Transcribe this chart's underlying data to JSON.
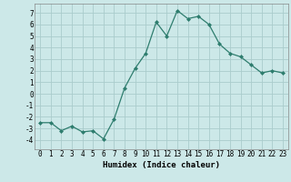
{
  "xlabel": "Humidex (Indice chaleur)",
  "x": [
    0,
    1,
    2,
    3,
    4,
    5,
    6,
    7,
    8,
    9,
    10,
    11,
    12,
    13,
    14,
    15,
    16,
    17,
    18,
    19,
    20,
    21,
    22,
    23
  ],
  "y": [
    -2.5,
    -2.5,
    -3.2,
    -2.8,
    -3.3,
    -3.2,
    -3.9,
    -2.2,
    0.5,
    2.2,
    3.5,
    6.2,
    5.0,
    7.2,
    6.5,
    6.7,
    6.0,
    4.3,
    3.5,
    3.2,
    2.5,
    1.8,
    2.0,
    1.8
  ],
  "line_color": "#2e7d6e",
  "marker": "D",
  "marker_size": 2.0,
  "bg_color": "#cce8e8",
  "grid_color": "#aacccc",
  "ylim": [
    -4.8,
    7.8
  ],
  "xlim": [
    -0.5,
    23.5
  ],
  "yticks": [
    -4,
    -3,
    -2,
    -1,
    0,
    1,
    2,
    3,
    4,
    5,
    6,
    7
  ],
  "xticks": [
    0,
    1,
    2,
    3,
    4,
    5,
    6,
    7,
    8,
    9,
    10,
    11,
    12,
    13,
    14,
    15,
    16,
    17,
    18,
    19,
    20,
    21,
    22,
    23
  ],
  "label_fontsize": 6.5,
  "tick_fontsize": 5.5,
  "line_width": 0.9
}
